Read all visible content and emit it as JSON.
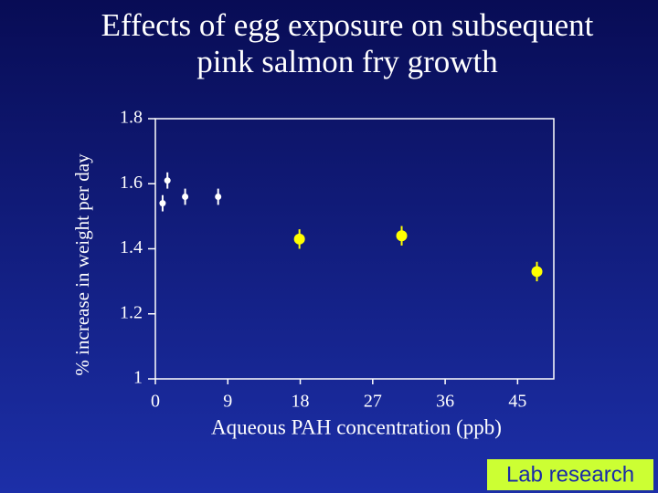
{
  "chart_data": {
    "type": "scatter",
    "title": "Effects of egg exposure on subsequent pink salmon fry growth",
    "x_label": "Aqueous PAH concentration (ppb)",
    "y_label": "% increase in weight per day",
    "xlim": [
      0,
      49.5
    ],
    "xticks": [
      0,
      9,
      18,
      27,
      36,
      45
    ],
    "ylim": [
      1,
      1.8
    ],
    "yticks": [
      1,
      1.2,
      1.4,
      1.6,
      1.8
    ],
    "series": [
      {
        "color": "#ffffff",
        "x": [
          0.9,
          1.5,
          3.7,
          7.8
        ],
        "values": [
          1.54,
          1.61,
          1.56,
          1.56
        ],
        "errors": [
          0.025,
          0.025,
          0.025,
          0.025
        ]
      },
      {
        "color": "#ffff00",
        "x": [
          17.9,
          30.6,
          47.4
        ],
        "values": [
          1.43,
          1.44,
          1.33
        ],
        "errors": [
          0.03,
          0.03,
          0.03
        ]
      }
    ]
  },
  "badge": "Lab research"
}
